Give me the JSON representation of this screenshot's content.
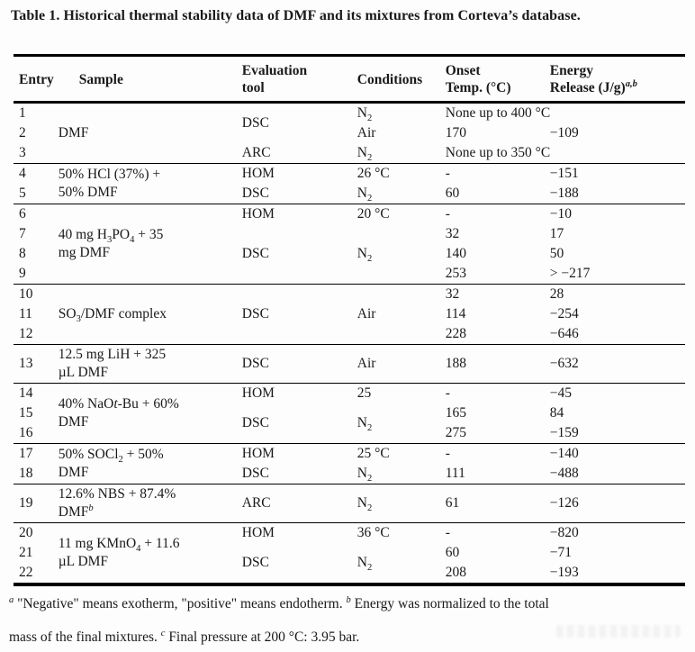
{
  "title": "Table 1. Historical thermal stability data of DMF and its mixtures from Corteva’s database.",
  "columns": {
    "entry": "Entry",
    "sample": "Sample",
    "tool_html": "Evaluation<br>tool",
    "conditions": "Conditions",
    "onset_html": "Onset<br>Temp. (°C)",
    "energy_html": "Energy<br>Release (J/g)<sup><i>a,b</i></sup>"
  },
  "cells": {
    "g0_sample": "DMF",
    "r1_entry": "1",
    "r1_tool": "DSC",
    "r1_cond": "N<sub>2</sub>",
    "r1_note": "None up to 400 °C",
    "r2_entry": "2",
    "r2_cond": "Air",
    "r2_onset": "170",
    "r2_energy": "−109",
    "r3_entry": "3",
    "r3_tool": "ARC",
    "r3_cond": "N<sub>2</sub>",
    "r3_note": "None up to 350 °C",
    "g1_sample": "50% HCl (37%) +<br>50% DMF",
    "r4_entry": "4",
    "r4_tool": "HOM",
    "r4_cond": "26 °C",
    "r4_onset": "-",
    "r4_energy": "−151",
    "r5_entry": "5",
    "r5_tool": "DSC",
    "r5_cond": "N<sub>2</sub>",
    "r5_onset": "60",
    "r5_energy": "−188",
    "g2_sample": "40 mg H<sub>3</sub>PO<sub>4</sub> + 35<br>mg DMF",
    "r6_entry": "6",
    "r6_tool": "HOM",
    "r6_cond": "20 °C",
    "r6_onset": "-",
    "r6_energy": "−10",
    "r7_entry": "7",
    "r7_tool": "DSC",
    "r7_cond": "N<sub>2</sub>",
    "r7_onset": "32",
    "r7_energy": "17",
    "r8_entry": "8",
    "r8_onset": "140",
    "r8_energy": "50",
    "r9_entry": "9",
    "r9_onset": "253",
    "r9_energy": "> −217",
    "g3_sample": "SO<sub>3</sub>/DMF complex",
    "r10_entry": "10",
    "r10_tool": "DSC",
    "r10_cond": "Air",
    "r10_onset": "32",
    "r10_energy": "28",
    "r11_entry": "11",
    "r11_onset": "114",
    "r11_energy": "−254",
    "r12_entry": "12",
    "r12_onset": "228",
    "r12_energy": "−646",
    "g4_sample": "12.5 mg LiH + 325<br>µL DMF",
    "r13_entry": "13",
    "r13_tool": "DSC",
    "r13_cond": "Air",
    "r13_onset": "188",
    "r13_energy": "−632",
    "g5_sample": "40% NaO<i>t</i>-Bu + 60%<br>DMF",
    "r14_entry": "14",
    "r14_tool": "HOM",
    "r14_cond": "25",
    "r14_onset": "-",
    "r14_energy": "−45",
    "r15_entry": "15",
    "r15_tool": "DSC",
    "r15_cond": "N<sub>2</sub>",
    "r15_onset": "165",
    "r15_energy": "84",
    "r16_entry": "16",
    "r16_onset": "275",
    "r16_energy": "−159",
    "g6_sample": "50% SOCl<sub>2</sub> + 50%<br>DMF",
    "r17_entry": "17",
    "r17_tool": "HOM",
    "r17_cond": "25 °C",
    "r17_onset": "-",
    "r17_energy": "−140",
    "r18_entry": "18",
    "r18_tool": "DSC",
    "r18_cond": "N<sub>2</sub>",
    "r18_onset": "111",
    "r18_energy": "−488",
    "g7_sample": "12.6% NBS + 87.4%<br>DMF<sup><i>b</i></sup>",
    "r19_entry": "19",
    "r19_tool": "ARC",
    "r19_cond": "N<sub>2</sub>",
    "r19_onset": "61",
    "r19_energy": "−126",
    "g8_sample": "11 mg KMnO<sub>4</sub> + 11.6<br>µL DMF",
    "r20_entry": "20",
    "r20_tool": "HOM",
    "r20_cond": "36 °C",
    "r20_onset": "-",
    "r20_energy": "−820",
    "r21_entry": "21",
    "r21_tool": "DSC",
    "r21_cond": "N<sub>2</sub>",
    "r21_onset": "60",
    "r21_energy": "−71",
    "r22_entry": "22",
    "r22_onset": "208",
    "r22_energy": "−193"
  },
  "footnotes": {
    "line1_html": "<sup><i>a</i></sup> \"Negative\" means exotherm, \"positive\" means endotherm. <sup><i>b</i></sup> Energy was normalized to the total",
    "line2_html": "mass of the final mixtures. <sup><i>c</i></sup> Final pressure at 200 °C: 3.95 bar."
  }
}
